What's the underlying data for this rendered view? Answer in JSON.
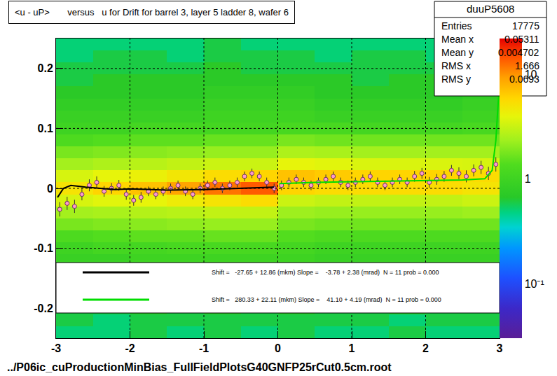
{
  "chart_data": {
    "type": "heatmap",
    "title": "<u - uP>       versus   u for Drift for barrel 3, layer 5 ladder 8, wafer 6",
    "footer": "../P06ic_cuProductionMinBias_FullFieldPlotsG40GNFP25rCut0.5cm.root",
    "stats": {
      "name": "duuP5608",
      "rows": [
        [
          "Entries",
          "17775"
        ],
        [
          "Mean x",
          "0.05311"
        ],
        [
          "Mean y",
          "0.004702"
        ],
        [
          "RMS x",
          "1.666"
        ],
        [
          "RMS y",
          "0.0693"
        ]
      ]
    },
    "xlim": [
      -3,
      3
    ],
    "xticks": [
      -3,
      -2,
      -1,
      0,
      1,
      2,
      3
    ],
    "ylim": [
      -0.25,
      0.25
    ],
    "yticks": [
      -0.2,
      -0.1,
      0,
      0.1,
      0.2
    ],
    "grid": true,
    "log": "z",
    "heatmap": {
      "x": [
        -2.75,
        -2.25,
        -1.75,
        -1.25,
        -0.75,
        -0.25,
        0.25,
        0.75,
        1.25,
        1.75,
        2.25,
        2.75
      ],
      "y": [
        -0.24,
        -0.22,
        -0.2,
        -0.18,
        -0.16,
        -0.14,
        -0.12,
        -0.1,
        -0.08,
        -0.06,
        -0.04,
        -0.02,
        0,
        0.02,
        0.04,
        0.06,
        0.08,
        0.1,
        0.12,
        0.14,
        0.16,
        0.18,
        0.2,
        0.22,
        0.24
      ],
      "z": [
        [
          0.5,
          0.5,
          0.6,
          0.5,
          0.6,
          0.5,
          0.6,
          0.5,
          0.5,
          0.6,
          0.5,
          0.5
        ],
        [
          0.6,
          0.5,
          0.6,
          0.6,
          0.6,
          0.6,
          0.6,
          0.6,
          0.6,
          0.5,
          0.6,
          0.6
        ],
        [
          0.6,
          0.6,
          0.7,
          0.6,
          0.7,
          0.6,
          0.7,
          0.6,
          0.6,
          0.7,
          0.6,
          0.6
        ],
        [
          0.7,
          0.7,
          0.7,
          0.7,
          0.8,
          0.7,
          0.7,
          0.7,
          0.7,
          0.7,
          0.7,
          0.7
        ],
        [
          0.7,
          0.8,
          0.8,
          0.8,
          0.8,
          0.8,
          0.8,
          0.8,
          0.7,
          0.8,
          0.8,
          0.7
        ],
        [
          0.8,
          0.8,
          0.9,
          0.9,
          0.9,
          0.9,
          0.9,
          0.8,
          0.8,
          0.8,
          0.8,
          0.8
        ],
        [
          0.9,
          0.9,
          1.0,
          1.0,
          1.0,
          1.0,
          1.0,
          0.9,
          0.9,
          0.9,
          0.9,
          0.9
        ],
        [
          1.0,
          1.1,
          1.1,
          1.2,
          1.2,
          1.2,
          1.1,
          1.0,
          1.0,
          1.0,
          1.0,
          1.0
        ],
        [
          1.3,
          1.4,
          1.5,
          1.5,
          1.6,
          1.6,
          1.4,
          1.3,
          1.3,
          1.3,
          1.3,
          1.3
        ],
        [
          1.8,
          1.9,
          2.0,
          2.1,
          2.2,
          2.2,
          1.8,
          1.7,
          1.7,
          1.7,
          1.7,
          1.7
        ],
        [
          2.4,
          2.5,
          2.7,
          2.8,
          3.0,
          3.0,
          2.3,
          2.2,
          2.2,
          2.2,
          2.2,
          2.3
        ],
        [
          3.5,
          3.8,
          4.0,
          4.5,
          5.0,
          5.5,
          3.2,
          3.0,
          3.0,
          3.0,
          3.0,
          3.2
        ],
        [
          5,
          6,
          7,
          9,
          12,
          14,
          6,
          5.5,
          5.5,
          5.5,
          5.5,
          5
        ],
        [
          3.5,
          4,
          4.2,
          4.8,
          5.5,
          6,
          7,
          6.5,
          6,
          6,
          6,
          5.5
        ],
        [
          2.4,
          2.6,
          2.8,
          3.0,
          3.2,
          3.2,
          4,
          3.8,
          3.6,
          3.6,
          3.6,
          3.5
        ],
        [
          1.8,
          1.9,
          2.0,
          2.1,
          2.2,
          2.2,
          2.6,
          2.5,
          2.4,
          2.4,
          2.4,
          2.4
        ],
        [
          1.3,
          1.4,
          1.5,
          1.5,
          1.6,
          1.6,
          1.8,
          1.7,
          1.7,
          1.7,
          1.7,
          1.7
        ],
        [
          1.0,
          1.0,
          1.1,
          1.1,
          1.1,
          1.1,
          1.2,
          1.2,
          1.1,
          1.1,
          1.1,
          1.2
        ],
        [
          0.9,
          0.9,
          0.9,
          0.9,
          1.0,
          1.0,
          1.0,
          0.9,
          0.9,
          0.9,
          0.9,
          1.0
        ],
        [
          0.8,
          0.8,
          0.8,
          0.8,
          0.9,
          0.9,
          0.9,
          0.8,
          0.8,
          0.8,
          0.8,
          0.9
        ],
        [
          0.7,
          0.7,
          0.7,
          0.7,
          0.8,
          0.8,
          0.8,
          0.7,
          0.7,
          0.7,
          0.7,
          0.8
        ],
        [
          0.6,
          0.7,
          0.7,
          0.7,
          0.7,
          0.7,
          0.7,
          0.7,
          0.6,
          0.7,
          0.7,
          0.7
        ],
        [
          0.6,
          0.6,
          0.6,
          0.6,
          0.7,
          0.6,
          0.6,
          0.6,
          0.6,
          0.6,
          0.6,
          0.7
        ],
        [
          0.5,
          0.6,
          0.6,
          0.5,
          0.6,
          0.6,
          0.6,
          0.5,
          0.6,
          0.6,
          0.5,
          0.6
        ],
        [
          0.5,
          0.5,
          0.5,
          0.5,
          0.6,
          0.5,
          0.5,
          0.5,
          0.5,
          0.5,
          0.5,
          0.5
        ]
      ],
      "colorbar": {
        "range": [
          0.03,
          22
        ],
        "ticks": [
          {
            "value": 0.1,
            "label": "10⁻¹"
          },
          1,
          10
        ]
      }
    },
    "profile": {
      "type": "scatter",
      "marker": "circle",
      "color": "#ff99cc",
      "x": [
        -2.95,
        -2.85,
        -2.75,
        -2.65,
        -2.55,
        -2.45,
        -2.35,
        -2.25,
        -2.15,
        -2.05,
        -1.95,
        -1.85,
        -1.75,
        -1.65,
        -1.55,
        -1.45,
        -1.35,
        -1.25,
        -1.15,
        -1.05,
        -0.95,
        -0.85,
        -0.75,
        -0.65,
        -0.55,
        -0.45,
        -0.35,
        -0.25,
        -0.15,
        -0.05,
        0.05,
        0.15,
        0.25,
        0.35,
        0.45,
        0.55,
        0.65,
        0.75,
        0.85,
        0.95,
        1.05,
        1.15,
        1.25,
        1.35,
        1.45,
        1.55,
        1.65,
        1.75,
        1.85,
        1.95,
        2.05,
        2.15,
        2.25,
        2.35,
        2.45,
        2.55,
        2.65,
        2.75,
        2.85,
        2.95
      ],
      "values": [
        -0.035,
        -0.025,
        -0.03,
        -0.01,
        0.005,
        0.01,
        -0.005,
        0.0,
        0.005,
        -0.01,
        -0.02,
        -0.015,
        -0.005,
        -0.01,
        -0.005,
        0.0,
        0.005,
        -0.005,
        -0.01,
        0.0,
        0.005,
        0.01,
        0.0,
        0.005,
        0.01,
        0.02,
        0.025,
        0.02,
        0.01,
        0.0,
        0.005,
        0.01,
        0.015,
        0.01,
        0.005,
        0.01,
        0.015,
        0.02,
        0.01,
        0.005,
        0.01,
        0.015,
        0.02,
        0.01,
        0.005,
        0.01,
        0.015,
        0.01,
        0.02,
        0.025,
        0.01,
        0.015,
        0.02,
        0.03,
        0.025,
        0.02,
        0.03,
        0.035,
        0.025,
        0.04
      ],
      "errors": [
        0.012,
        0.011,
        0.011,
        0.01,
        0.01,
        0.01,
        0.009,
        0.009,
        0.009,
        0.009,
        0.009,
        0.009,
        0.008,
        0.008,
        0.008,
        0.008,
        0.008,
        0.008,
        0.008,
        0.008,
        0.008,
        0.008,
        0.008,
        0.008,
        0.008,
        0.008,
        0.008,
        0.008,
        0.008,
        0.008,
        0.008,
        0.008,
        0.008,
        0.008,
        0.008,
        0.008,
        0.008,
        0.008,
        0.008,
        0.008,
        0.008,
        0.008,
        0.008,
        0.008,
        0.008,
        0.008,
        0.008,
        0.008,
        0.009,
        0.009,
        0.009,
        0.009,
        0.009,
        0.009,
        0.01,
        0.01,
        0.01,
        0.011,
        0.011,
        0.012
      ]
    },
    "series": [
      {
        "name": "Shift =   -27.65 + 12.86 (mkm) Slope =    -3.78 + 2.38 (mrad)  N = 11 prob = 0.000",
        "type": "line",
        "color": "#000000",
        "x": [
          -2.98,
          -2.9,
          -2.8,
          -2.6,
          -2.4,
          -2.2,
          -2.0,
          -1.5,
          -1.0,
          -0.5,
          -0.05
        ],
        "values": [
          -0.015,
          0.0,
          0.005,
          0.002,
          0.0,
          -0.002,
          -0.001,
          -0.003,
          -0.002,
          0.0,
          0.002
        ]
      },
      {
        "name": "Shift =   280.33 + 22.11 (mkm) Slope =    41.10 + 4.19 (mrad)  N = 11 prob = 0.000",
        "type": "line",
        "color": "#00dd00",
        "x": [
          0.02,
          0.5,
          1.0,
          1.5,
          2.0,
          2.5,
          2.8,
          2.9,
          2.95,
          2.99
        ],
        "values": [
          0.008,
          0.01,
          0.011,
          0.012,
          0.013,
          0.014,
          0.016,
          0.03,
          0.08,
          0.16
        ]
      }
    ]
  }
}
